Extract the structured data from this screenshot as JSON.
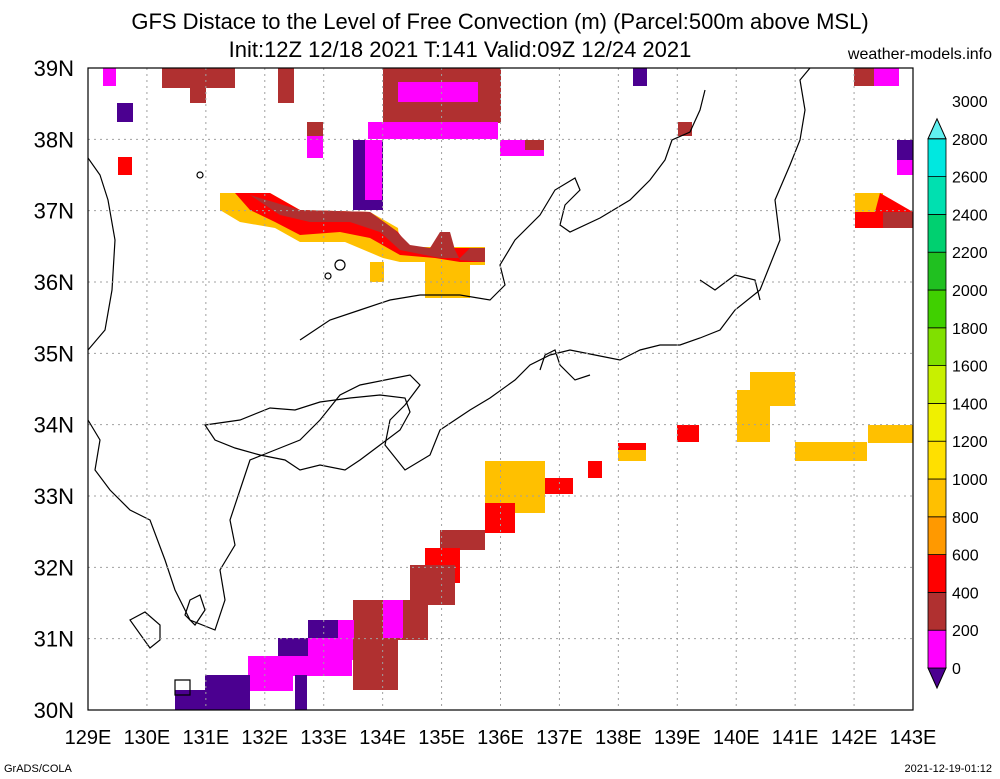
{
  "title_line1": "GFS Distace to the Level of Free Convection (m) (Parcel:500m above MSL)",
  "title_line2": "Init:12Z 12/18 2021 T:141 Valid:09Z 12/24 2021",
  "site": "weather-models.info",
  "footer_left": "GrADS/COLA",
  "footer_right": "2021-12-19-01:12",
  "lon_labels": [
    "129E",
    "130E",
    "131E",
    "132E",
    "133E",
    "134E",
    "135E",
    "136E",
    "137E",
    "138E",
    "139E",
    "140E",
    "141E",
    "142E",
    "143E"
  ],
  "lat_labels": [
    "30N",
    "31N",
    "32N",
    "33N",
    "34N",
    "35N",
    "36N",
    "37N",
    "38N",
    "39N"
  ],
  "colorbar": {
    "levels": [
      "0",
      "200",
      "400",
      "600",
      "800",
      "1000",
      "1200",
      "1400",
      "1600",
      "1800",
      "2000",
      "2200",
      "2400",
      "2600",
      "2800",
      "3000"
    ],
    "colors": [
      "#4b0090",
      "#ff00ff",
      "#b03030",
      "#ff0000",
      "#ff9900",
      "#ffc000",
      "#ffe000",
      "#f0f000",
      "#c8f000",
      "#80e000",
      "#40d000",
      "#20c020",
      "#00d070",
      "#00e0b0",
      "#00e8e0",
      "#60f0f0"
    ]
  }
}
